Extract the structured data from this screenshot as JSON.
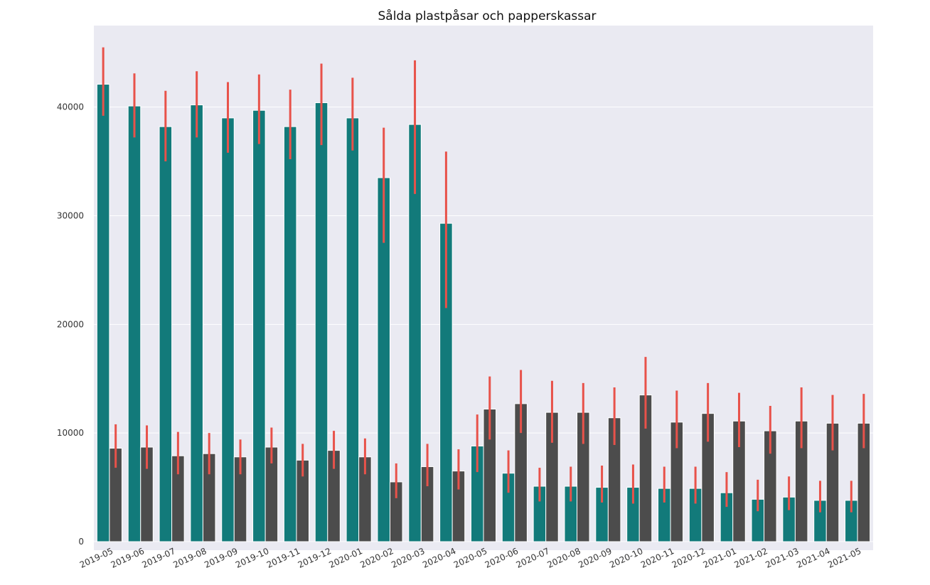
{
  "chart_data": {
    "type": "bar",
    "title": "Sålda plastpåsar och papperskassar",
    "xlabel": "",
    "ylabel": "",
    "ylim": [
      0,
      47500
    ],
    "yticks": [
      0,
      10000,
      20000,
      30000,
      40000
    ],
    "grid": true,
    "legend": "none",
    "categories": [
      "2019-05",
      "2019-06",
      "2019-07",
      "2019-08",
      "2019-09",
      "2019-10",
      "2019-11",
      "2019-12",
      "2020-01",
      "2020-02",
      "2020-03",
      "2020-04",
      "2020-05",
      "2020-06",
      "2020-07",
      "2020-08",
      "2020-09",
      "2020-10",
      "2020-11",
      "2020-12",
      "2021-01",
      "2021-02",
      "2021-03",
      "2021-04",
      "2021-05"
    ],
    "series": [
      {
        "color": "#127a7a",
        "values": [
          42100,
          40100,
          38200,
          40200,
          39000,
          39700,
          38200,
          40400,
          39000,
          33500,
          38400,
          29300,
          8800,
          6300,
          5100,
          5100,
          5000,
          5000,
          4900,
          4900,
          4500,
          3900,
          4100,
          3800,
          3800
        ],
        "err_low": [
          39200,
          37200,
          35000,
          37200,
          35800,
          36600,
          35200,
          36500,
          36000,
          27500,
          32000,
          21500,
          6400,
          4500,
          3700,
          3700,
          3600,
          3500,
          3600,
          3500,
          3200,
          2800,
          2900,
          2700,
          2700
        ],
        "err_high": [
          45500,
          43100,
          41500,
          43300,
          42300,
          43000,
          41600,
          44000,
          42700,
          38100,
          44300,
          35900,
          11700,
          8400,
          6800,
          6900,
          7000,
          7100,
          6900,
          6900,
          6400,
          5700,
          6000,
          5600,
          5600
        ]
      },
      {
        "color": "#4c4c4c",
        "values": [
          8600,
          8700,
          7900,
          8100,
          7800,
          8700,
          7500,
          8400,
          7800,
          5500,
          6900,
          6500,
          12200,
          12700,
          11900,
          11900,
          11400,
          13500,
          11000,
          11800,
          11100,
          10200,
          11100,
          10900,
          10900
        ],
        "err_low": [
          6800,
          6700,
          6200,
          6200,
          6200,
          7200,
          6000,
          6700,
          6200,
          4000,
          5100,
          4800,
          9400,
          10000,
          9100,
          9000,
          8900,
          10400,
          8600,
          9200,
          8700,
          8100,
          8600,
          8400,
          8600
        ],
        "err_high": [
          10800,
          10700,
          10100,
          10000,
          9400,
          10500,
          9000,
          10200,
          9500,
          7200,
          9000,
          8500,
          15200,
          15800,
          14800,
          14600,
          14200,
          17000,
          13900,
          14600,
          13700,
          12500,
          14200,
          13500,
          13600
        ]
      }
    ],
    "error_bar_color": "#e8524a"
  }
}
